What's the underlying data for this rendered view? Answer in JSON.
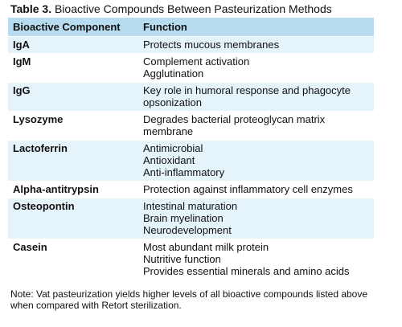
{
  "caption": {
    "label": "Table 3.",
    "text": "Bioactive Compounds Between Pasteurization Methods"
  },
  "table": {
    "headers": [
      "Bioactive Component",
      "Function"
    ],
    "rows": [
      {
        "component": "IgA",
        "functions": [
          "Protects mucous membranes"
        ]
      },
      {
        "component": "IgM",
        "functions": [
          "Complement activation",
          "Agglutination"
        ]
      },
      {
        "component": "IgG",
        "functions": [
          "Key role in humoral response and phagocyte",
          "opsonization"
        ]
      },
      {
        "component": "Lysozyme",
        "functions": [
          "Degrades bacterial proteoglycan matrix",
          "membrane"
        ]
      },
      {
        "component": "Lactoferrin",
        "functions": [
          "Antimicrobial",
          "Antioxidant",
          "Anti-inflammatory"
        ]
      },
      {
        "component": "Alpha-antitrypsin",
        "functions": [
          "Protection against inflammatory cell enzymes"
        ]
      },
      {
        "component": "Osteopontin",
        "functions": [
          "Intestinal maturation",
          "Brain myelination",
          "Neurodevelopment"
        ]
      },
      {
        "component": "Casein",
        "functions": [
          "Most abundant milk protein",
          "Nutritive function",
          "Provides essential minerals and amino acids"
        ]
      }
    ]
  },
  "note": {
    "line1": "Note: Vat pasteurization yields higher levels of all bioactive compounds listed above",
    "line2": "when compared with Retort sterilization."
  },
  "colors": {
    "header_bg": "#b7dcef",
    "band_bg": "#e5f3fa"
  }
}
